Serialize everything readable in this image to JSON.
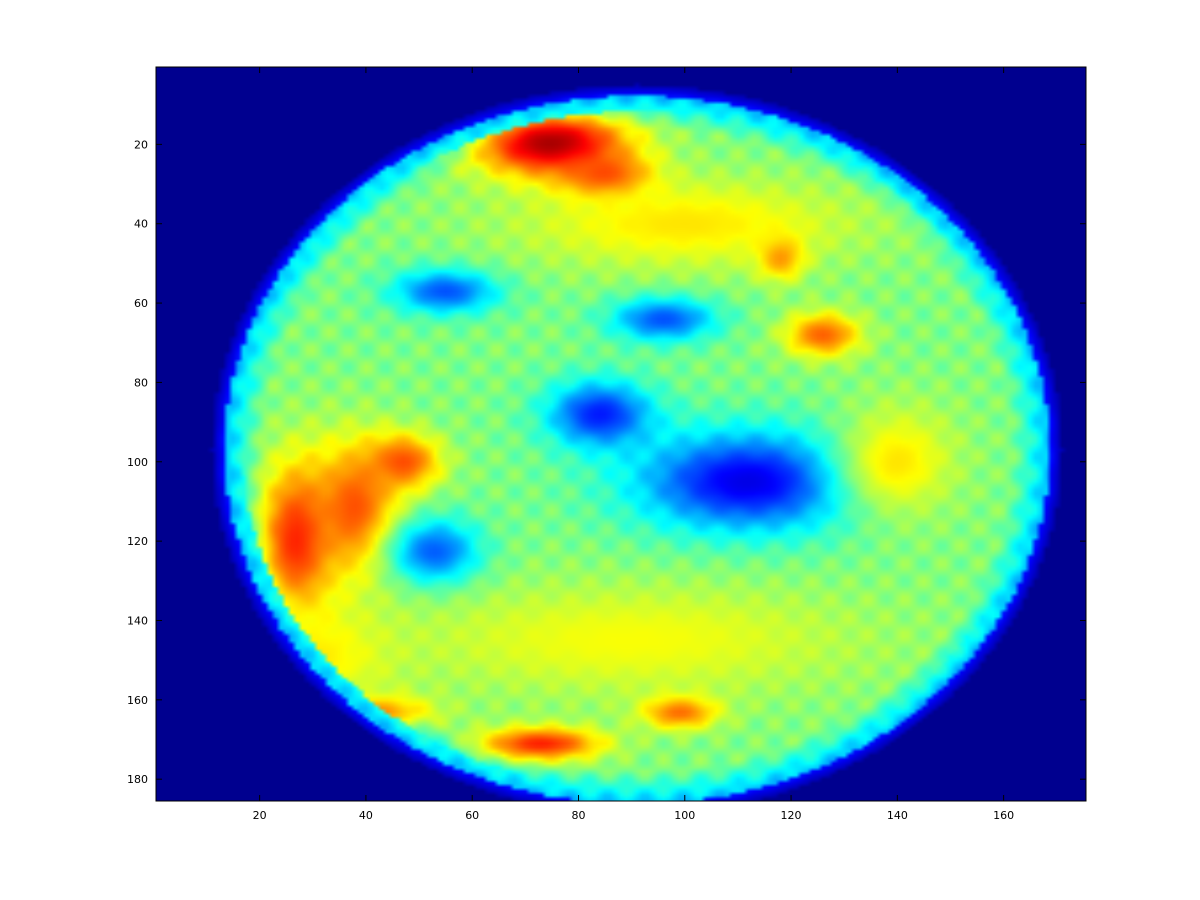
{
  "chart_data": {
    "type": "heatmap",
    "title": "",
    "xlabel": "",
    "ylabel": "",
    "colormap": "jet",
    "background_color": "#00008f",
    "xlim": [
      0.5,
      175.5
    ],
    "ylim": [
      0.5,
      185.5
    ],
    "y_reversed": true,
    "grid": false,
    "legend": "none",
    "xticks": [
      20,
      40,
      60,
      80,
      100,
      120,
      140,
      160
    ],
    "yticks": [
      20,
      40,
      60,
      80,
      100,
      120,
      140,
      160,
      180
    ],
    "xtick_labels": [
      "20",
      "40",
      "60",
      "80",
      "100",
      "120",
      "140",
      "160"
    ],
    "ytick_labels": [
      "20",
      "40",
      "60",
      "80",
      "100",
      "120",
      "140",
      "160",
      "180"
    ],
    "value_range": [
      0,
      1
    ],
    "region": {
      "shape": "ellipse",
      "center": [
        91,
        97
      ],
      "radii": [
        80,
        92
      ],
      "rim_value": 0.25,
      "base_value": 0.5
    },
    "features": [
      {
        "x": 75,
        "y": 20,
        "sx": 10,
        "sy": 6,
        "value": 0.97
      },
      {
        "x": 85,
        "y": 28,
        "sx": 6,
        "sy": 4,
        "value": 0.85
      },
      {
        "x": 118,
        "y": 48,
        "sx": 3,
        "sy": 4,
        "value": 0.78
      },
      {
        "x": 126,
        "y": 68,
        "sx": 5,
        "sy": 4,
        "value": 0.78
      },
      {
        "x": 27,
        "y": 120,
        "sx": 5,
        "sy": 14,
        "value": 0.85
      },
      {
        "x": 38,
        "y": 112,
        "sx": 6,
        "sy": 12,
        "value": 0.8
      },
      {
        "x": 47,
        "y": 100,
        "sx": 5,
        "sy": 5,
        "value": 0.8
      },
      {
        "x": 40,
        "y": 163,
        "sx": 8,
        "sy": 3,
        "value": 0.8
      },
      {
        "x": 73,
        "y": 171,
        "sx": 8,
        "sy": 3,
        "value": 0.85
      },
      {
        "x": 99,
        "y": 163,
        "sx": 5,
        "sy": 3,
        "value": 0.8
      },
      {
        "x": 55,
        "y": 57,
        "sx": 7,
        "sy": 4,
        "value": 0.2
      },
      {
        "x": 96,
        "y": 64,
        "sx": 7,
        "sy": 4,
        "value": 0.2
      },
      {
        "x": 84,
        "y": 88,
        "sx": 7,
        "sy": 6,
        "value": 0.15
      },
      {
        "x": 112,
        "y": 105,
        "sx": 15,
        "sy": 9,
        "value": 0.1
      },
      {
        "x": 53,
        "y": 123,
        "sx": 6,
        "sy": 6,
        "value": 0.2
      },
      {
        "x": 140,
        "y": 100,
        "sx": 8,
        "sy": 10,
        "value": 0.65
      },
      {
        "x": 100,
        "y": 40,
        "sx": 22,
        "sy": 8,
        "value": 0.65
      },
      {
        "x": 90,
        "y": 145,
        "sx": 30,
        "sy": 10,
        "value": 0.62
      },
      {
        "x": 30,
        "y": 150,
        "sx": 10,
        "sy": 10,
        "value": 0.65
      }
    ]
  }
}
